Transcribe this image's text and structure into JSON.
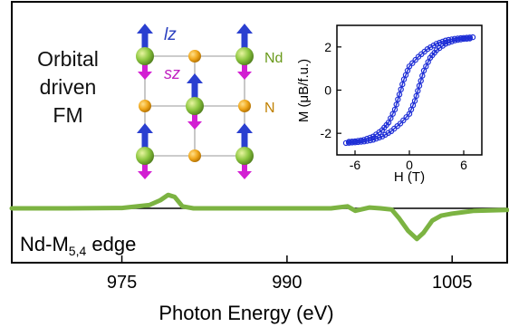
{
  "chart_data": [
    {
      "type": "line",
      "title": "",
      "xlabel": "Photon Energy (eV)",
      "ylabel": "",
      "xlim": [
        965,
        1010
      ],
      "ylim": [
        -1,
        1
      ],
      "xticks": [
        "975",
        "990",
        "1005"
      ],
      "annotations": [
        {
          "text": "Orbital",
          "role": "note-line-1"
        },
        {
          "text": "driven",
          "role": "note-line-2"
        },
        {
          "text": "FM",
          "role": "note-line-3"
        },
        {
          "text": "lz",
          "role": "arrow-label-orbital"
        },
        {
          "text": "sz",
          "role": "arrow-label-spin"
        },
        {
          "text": "Nd",
          "role": "atom-label"
        },
        {
          "text": "N",
          "role": "atom-label"
        },
        {
          "text": "Nd-M",
          "sub": "5,4",
          "tail": " edge",
          "role": "edge-label"
        }
      ],
      "series": [
        {
          "color": "#7cb342",
          "baseline_color": "#000000",
          "points": [
            [
              965,
              0
            ],
            [
              970,
              0
            ],
            [
              975,
              0.01
            ],
            [
              977.5,
              0.08
            ],
            [
              978.5,
              0.2
            ],
            [
              979.2,
              0.33
            ],
            [
              979.8,
              0.28
            ],
            [
              980.5,
              0.05
            ],
            [
              981.5,
              0
            ],
            [
              985,
              0
            ],
            [
              990,
              0
            ],
            [
              994,
              0
            ],
            [
              995.5,
              0.05
            ],
            [
              996.2,
              -0.06
            ],
            [
              997.5,
              0.02
            ],
            [
              998.5,
              0
            ],
            [
              999.5,
              -0.03
            ],
            [
              1000.2,
              -0.25
            ],
            [
              1001,
              -0.55
            ],
            [
              1001.8,
              -0.75
            ],
            [
              1002.4,
              -0.6
            ],
            [
              1003.2,
              -0.3
            ],
            [
              1004,
              -0.18
            ],
            [
              1005,
              -0.13
            ],
            [
              1007,
              -0.06
            ],
            [
              1010,
              -0.04
            ]
          ]
        }
      ],
      "grid": false,
      "legend": "none"
    },
    {
      "type": "line",
      "title": "",
      "xlabel": "H (T)",
      "ylabel": "M (μB/f.u.)",
      "xlim": [
        -8,
        8
      ],
      "ylim": [
        -3,
        3
      ],
      "xticks": [
        "-6",
        "0",
        "6"
      ],
      "yticks": [
        "2",
        "0",
        "-2"
      ],
      "series": [
        {
          "branch": "descending",
          "color": "#1f2fd6",
          "points": [
            [
              7,
              2.45
            ],
            [
              6,
              2.42
            ],
            [
              5,
              2.38
            ],
            [
              4,
              2.3
            ],
            [
              3,
              2.15
            ],
            [
              2,
              1.9
            ],
            [
              1,
              1.55
            ],
            [
              0,
              1.1
            ],
            [
              -0.6,
              0.5
            ],
            [
              -1.1,
              -0.2
            ],
            [
              -1.6,
              -0.9
            ],
            [
              -2.3,
              -1.5
            ],
            [
              -3,
              -1.85
            ],
            [
              -4,
              -2.15
            ],
            [
              -5,
              -2.3
            ],
            [
              -6,
              -2.37
            ],
            [
              -7,
              -2.4
            ]
          ]
        },
        {
          "branch": "ascending",
          "color": "#1f2fd6",
          "points": [
            [
              -7,
              -2.45
            ],
            [
              -6,
              -2.42
            ],
            [
              -5,
              -2.38
            ],
            [
              -4,
              -2.3
            ],
            [
              -3,
              -2.15
            ],
            [
              -2,
              -1.9
            ],
            [
              -1,
              -1.55
            ],
            [
              0,
              -1.1
            ],
            [
              0.6,
              -0.5
            ],
            [
              1.1,
              0.2
            ],
            [
              1.6,
              0.9
            ],
            [
              2.3,
              1.5
            ],
            [
              3,
              1.85
            ],
            [
              4,
              2.15
            ],
            [
              5,
              2.3
            ],
            [
              6,
              2.37
            ],
            [
              7,
              2.4
            ]
          ]
        }
      ],
      "grid": false,
      "legend": "none"
    }
  ]
}
